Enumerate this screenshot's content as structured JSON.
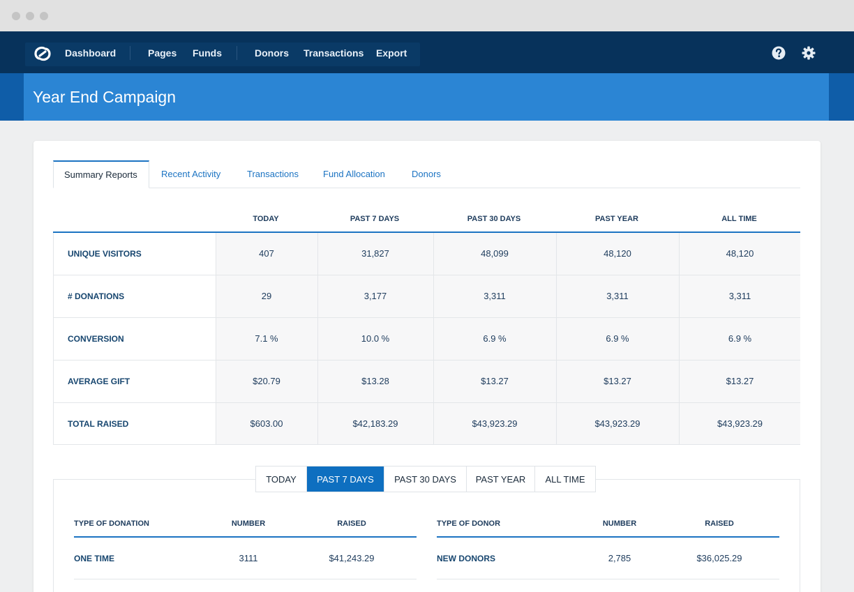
{
  "nav": {
    "items": [
      {
        "label": "Dashboard"
      },
      {
        "label": "Pages"
      },
      {
        "label": "Funds"
      },
      {
        "label": "Donors"
      },
      {
        "label": "Transactions"
      },
      {
        "label": "Export"
      }
    ],
    "icons": [
      "logo-icon",
      "help-icon",
      "settings-gear-icon"
    ]
  },
  "page": {
    "title": "Year End Campaign"
  },
  "tabs": [
    {
      "label": "Summary Reports",
      "active": true
    },
    {
      "label": "Recent Activity"
    },
    {
      "label": "Transactions"
    },
    {
      "label": "Fund Allocation"
    },
    {
      "label": "Donors"
    }
  ],
  "summary": {
    "columns": [
      "TODAY",
      "PAST 7 DAYS",
      "PAST 30 DAYS",
      "PAST YEAR",
      "ALL TIME"
    ],
    "rows": [
      {
        "label": "UNIQUE VISITORS",
        "values": [
          "407",
          "31,827",
          "48,099",
          "48,120",
          "48,120"
        ]
      },
      {
        "label": "# DONATIONS",
        "values": [
          "29",
          "3,177",
          "3,311",
          "3,311",
          "3,311"
        ]
      },
      {
        "label": "CONVERSION",
        "values": [
          "7.1 %",
          "10.0 %",
          "6.9 %",
          "6.9 %",
          "6.9 %"
        ]
      },
      {
        "label": "AVERAGE GIFT",
        "values": [
          "$20.79",
          "$13.28",
          "$13.27",
          "$13.27",
          "$13.27"
        ]
      },
      {
        "label": "TOTAL RAISED",
        "values": [
          "$603.00",
          "$42,183.29",
          "$43,923.29",
          "$43,923.29",
          "$43,923.29"
        ]
      }
    ]
  },
  "periods": {
    "options": [
      "TODAY",
      "PAST 7 DAYS",
      "PAST 30 DAYS",
      "PAST YEAR",
      "ALL TIME"
    ],
    "selected": "PAST 7 DAYS"
  },
  "donation_types": {
    "headers": [
      "TYPE OF DONATION",
      "NUMBER",
      "RAISED"
    ],
    "rows": [
      {
        "type": "ONE TIME",
        "number": "3111",
        "raised": "$41,243.29"
      }
    ]
  },
  "donor_types": {
    "headers": [
      "TYPE OF DONOR",
      "NUMBER",
      "RAISED"
    ],
    "rows": [
      {
        "type": "NEW DONORS",
        "number": "2,785",
        "raised": "$36,025.29"
      }
    ]
  },
  "colors": {
    "nav_bg": "#07325b",
    "banner": "#2b85d4",
    "accent": "#1b73c2",
    "active_segment": "#0e6fc0"
  }
}
